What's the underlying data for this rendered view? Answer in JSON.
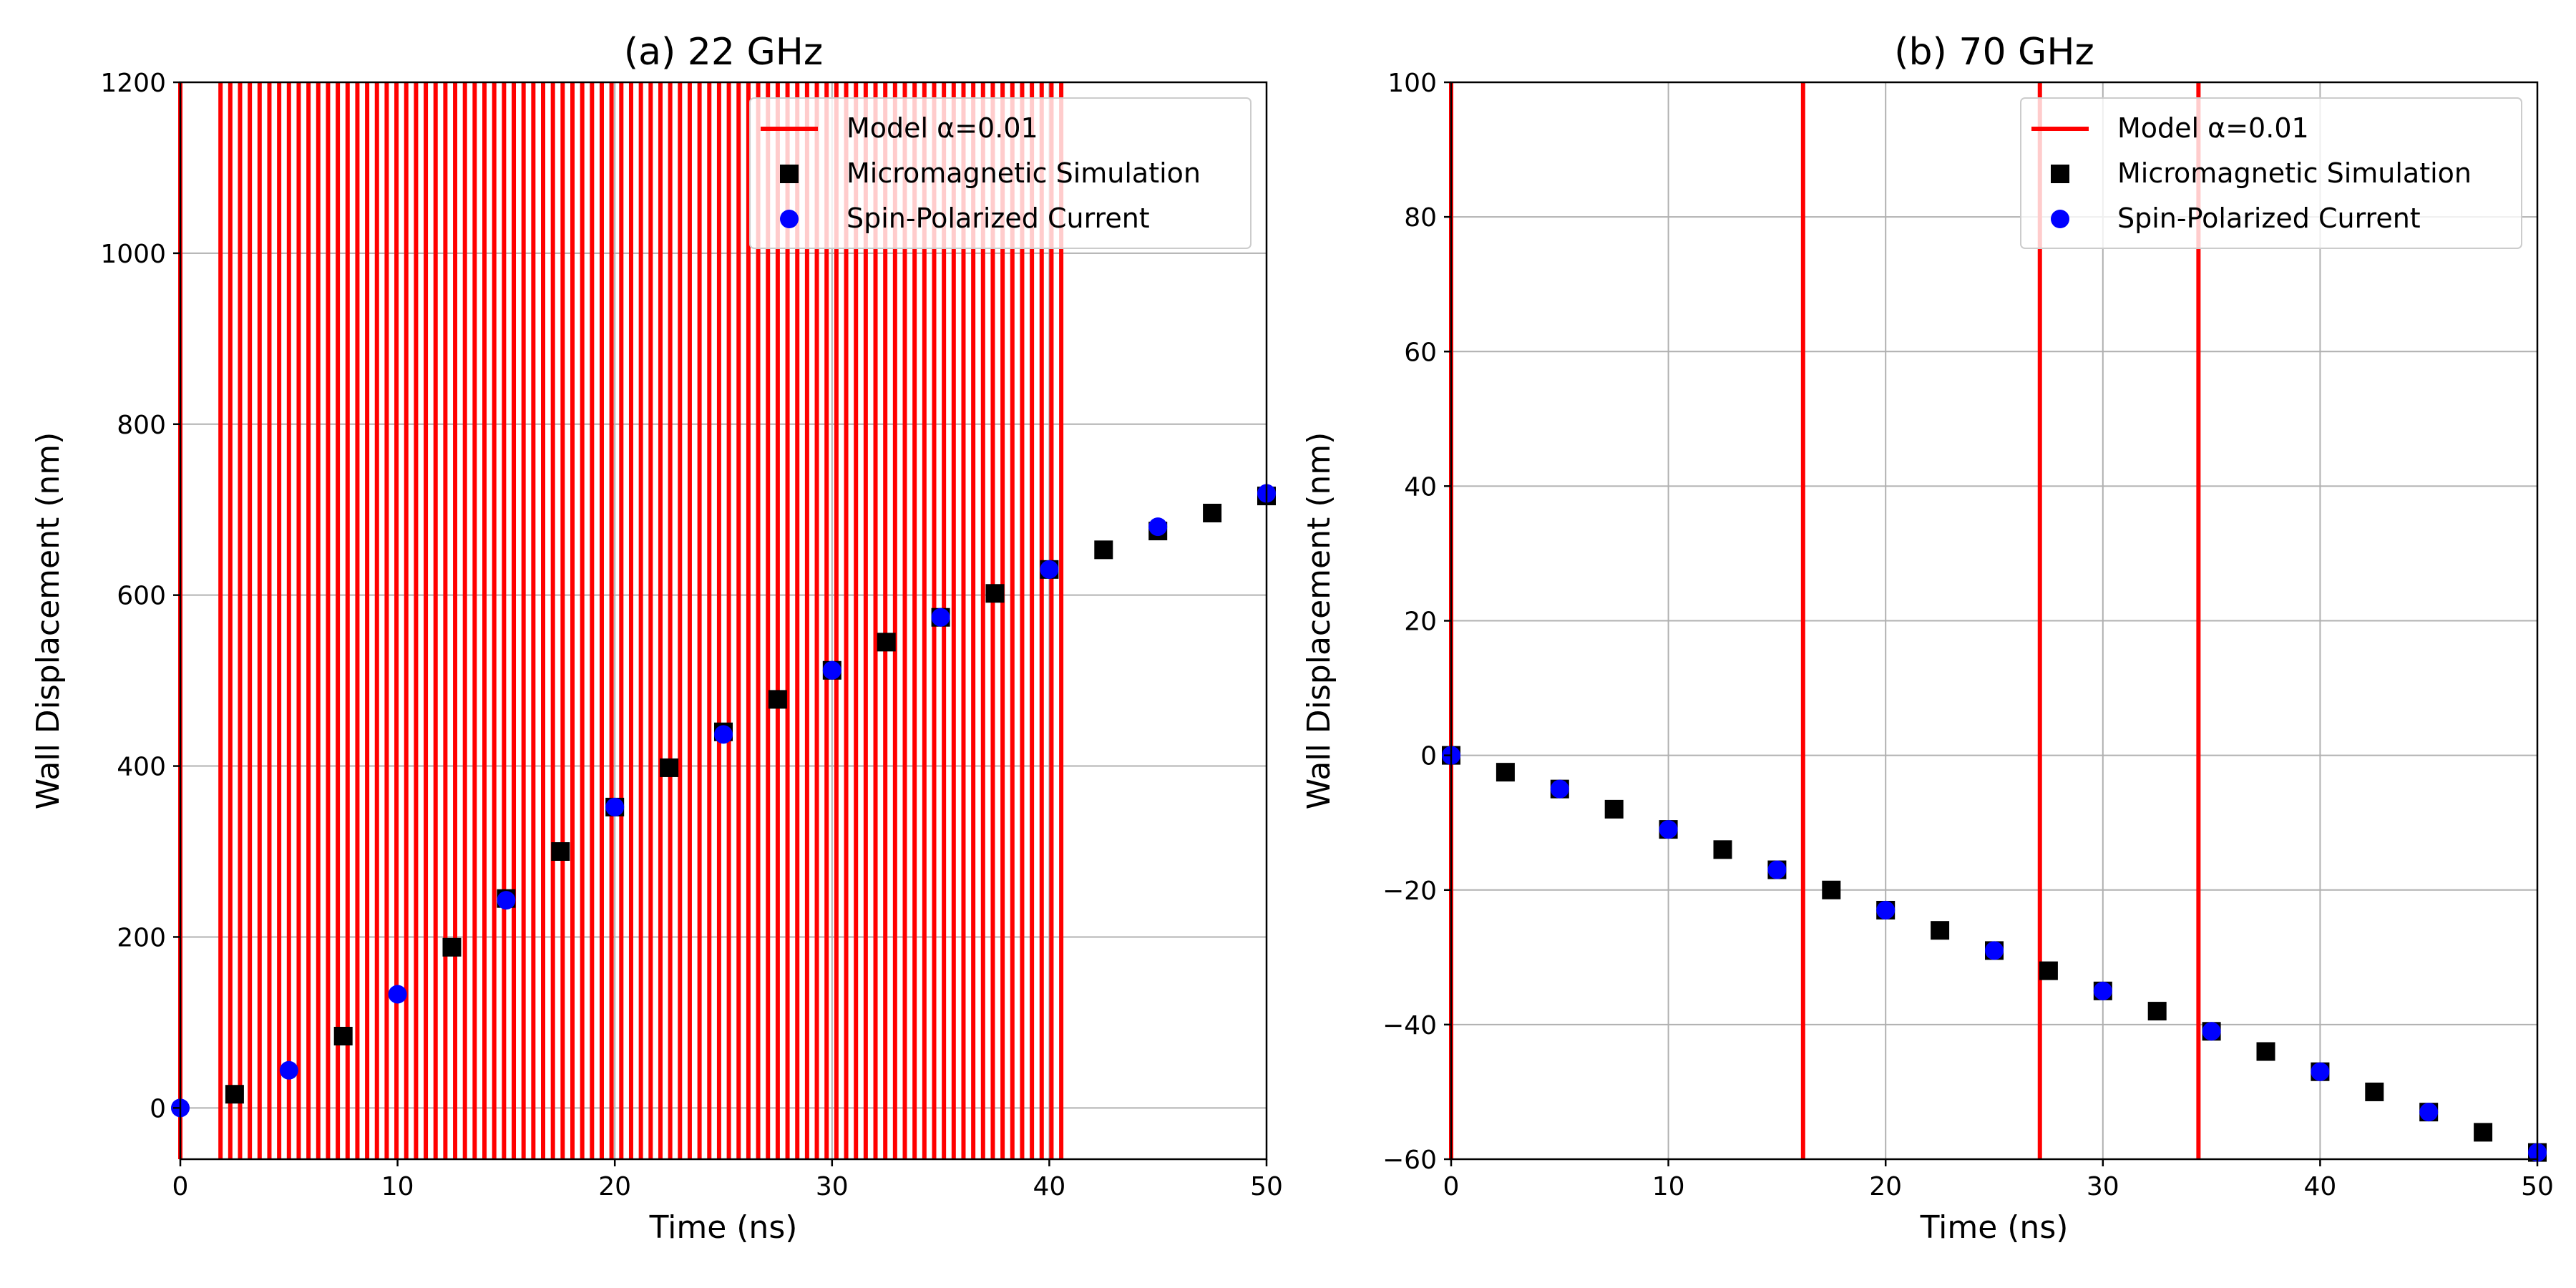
{
  "chart_data": [
    {
      "type": "line",
      "title": "(a) 22 GHz",
      "xlabel": "Time (ns)",
      "ylabel": "Wall Displacement (nm)",
      "xlim": [
        0,
        50
      ],
      "ylim": [
        -60,
        1200
      ],
      "xticks": [
        0,
        10,
        20,
        30,
        40,
        50
      ],
      "yticks": [
        0,
        200,
        400,
        600,
        800,
        1000,
        1200
      ],
      "grid": true,
      "legend_position": "top-right",
      "model_line_x": [
        0.0,
        1.85,
        2.3,
        2.75,
        3.2,
        3.65,
        4.1,
        4.55,
        5.0,
        5.45,
        5.9,
        6.35,
        6.8,
        7.25,
        7.7,
        8.15,
        8.6,
        9.05,
        9.5,
        9.95,
        10.4,
        10.85,
        11.3,
        11.75,
        12.2,
        12.65,
        13.1,
        13.55,
        14.0,
        14.45,
        14.9,
        15.35,
        15.8,
        16.25,
        16.7,
        17.15,
        17.6,
        18.05,
        18.5,
        18.95,
        19.4,
        19.85,
        20.3,
        20.75,
        21.2,
        21.65,
        22.1,
        22.55,
        23.0,
        23.45,
        23.9,
        24.35,
        24.8,
        25.25,
        25.7,
        26.15,
        26.6,
        27.05,
        27.5,
        27.95,
        28.4,
        28.85,
        29.3,
        29.75,
        30.2,
        30.65,
        31.1,
        31.55,
        32.0,
        32.45,
        32.9,
        33.35,
        33.8,
        34.25,
        34.7,
        35.15,
        35.6,
        36.05,
        36.5,
        36.95,
        37.4,
        37.85,
        38.3,
        38.75,
        39.2,
        39.65,
        40.1,
        40.55
      ],
      "series": [
        {
          "name": "Model α=0.01",
          "style": "line",
          "color": "#ff0000"
        },
        {
          "name": "Micromagnetic Simulation",
          "style": "square-marker",
          "color": "#000000",
          "x": [
            2.5,
            7.5,
            12.5,
            15,
            17.5,
            20,
            22.5,
            25,
            27.5,
            30,
            32.5,
            35,
            37.5,
            40,
            42.5,
            45,
            47.5,
            50
          ],
          "y": [
            16,
            84,
            188,
            245,
            300,
            352,
            398,
            440,
            478,
            512,
            545,
            574,
            602,
            630,
            653,
            675,
            696,
            716
          ]
        },
        {
          "name": "Spin-Polarized Current",
          "style": "circle-marker",
          "color": "#0000ff",
          "x": [
            0,
            5,
            10,
            15,
            20,
            25,
            30,
            35,
            40,
            45,
            50
          ],
          "y": [
            0,
            44,
            133,
            243,
            352,
            437,
            512,
            574,
            630,
            680,
            719
          ]
        }
      ]
    },
    {
      "type": "line",
      "title": "(b) 70 GHz",
      "xlabel": "Time (ns)",
      "ylabel": "Wall Displacement (nm)",
      "xlim": [
        0,
        50
      ],
      "ylim": [
        -60,
        100
      ],
      "xticks": [
        0,
        10,
        20,
        30,
        40,
        50
      ],
      "yticks": [
        -60,
        -40,
        -20,
        0,
        20,
        40,
        60,
        80,
        100
      ],
      "grid": true,
      "legend_position": "top-right",
      "model_line_x": [
        0,
        16.2,
        27.1,
        34.4
      ],
      "series": [
        {
          "name": "Model α=0.01",
          "style": "line",
          "color": "#ff0000"
        },
        {
          "name": "Micromagnetic Simulation",
          "style": "square-marker",
          "color": "#000000",
          "x": [
            0,
            2.5,
            5,
            7.5,
            10,
            12.5,
            15,
            17.5,
            20,
            22.5,
            25,
            27.5,
            30,
            32.5,
            35,
            37.5,
            40,
            42.5,
            45,
            47.5,
            50
          ],
          "y": [
            0,
            -2.5,
            -5,
            -8,
            -11,
            -14,
            -17,
            -20,
            -23,
            -26,
            -29,
            -32,
            -35,
            -38,
            -41,
            -44,
            -47,
            -50,
            -53,
            -56,
            -59
          ]
        },
        {
          "name": "Spin-Polarized Current",
          "style": "circle-marker",
          "color": "#0000ff",
          "x": [
            0,
            5,
            10,
            15,
            20,
            25,
            30,
            35,
            40,
            45,
            50
          ],
          "y": [
            0,
            -5,
            -11,
            -17,
            -23,
            -29,
            -35,
            -41,
            -47,
            -53,
            -59
          ]
        }
      ]
    }
  ]
}
